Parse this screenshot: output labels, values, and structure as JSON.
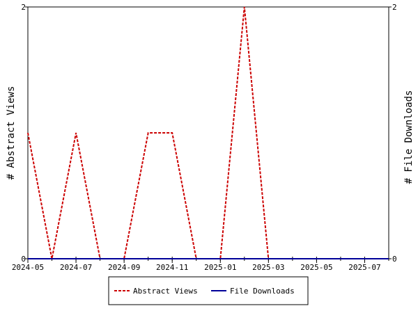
{
  "chart_data": {
    "type": "line",
    "x_tick_labels": [
      "2024-05",
      "2024-07",
      "2024-09",
      "2024-11",
      "2025-01",
      "2025-03",
      "2025-05",
      "2025-07"
    ],
    "x": [
      "2024-05",
      "2024-06",
      "2024-07",
      "2024-08",
      "2024-09",
      "2024-10",
      "2024-11",
      "2024-12",
      "2025-01",
      "2025-02",
      "2025-03",
      "2025-04",
      "2025-05",
      "2025-06",
      "2025-07",
      "2025-08"
    ],
    "series": [
      {
        "name": "Abstract Views",
        "axis": "left",
        "color": "#cc0000",
        "style": "dashed",
        "values": [
          1,
          0,
          1,
          0,
          0,
          1,
          1,
          0,
          0,
          2,
          0,
          0,
          0,
          0,
          0,
          0
        ]
      },
      {
        "name": "File Downloads",
        "axis": "right",
        "color": "#000099",
        "style": "solid",
        "values": [
          0,
          0,
          0,
          0,
          0,
          0,
          0,
          0,
          0,
          0,
          0,
          0,
          0,
          0,
          0,
          0
        ]
      }
    ],
    "ylabel_left": "# Abstract Views",
    "ylabel_right": "# File Downloads",
    "ylim_left": [
      0,
      2
    ],
    "ylim_right": [
      0,
      2
    ],
    "y_ticks_left": [
      "0",
      "2"
    ],
    "y_ticks_right": [
      "0",
      "2"
    ],
    "legend_position": "bottom-center",
    "grid": false
  }
}
